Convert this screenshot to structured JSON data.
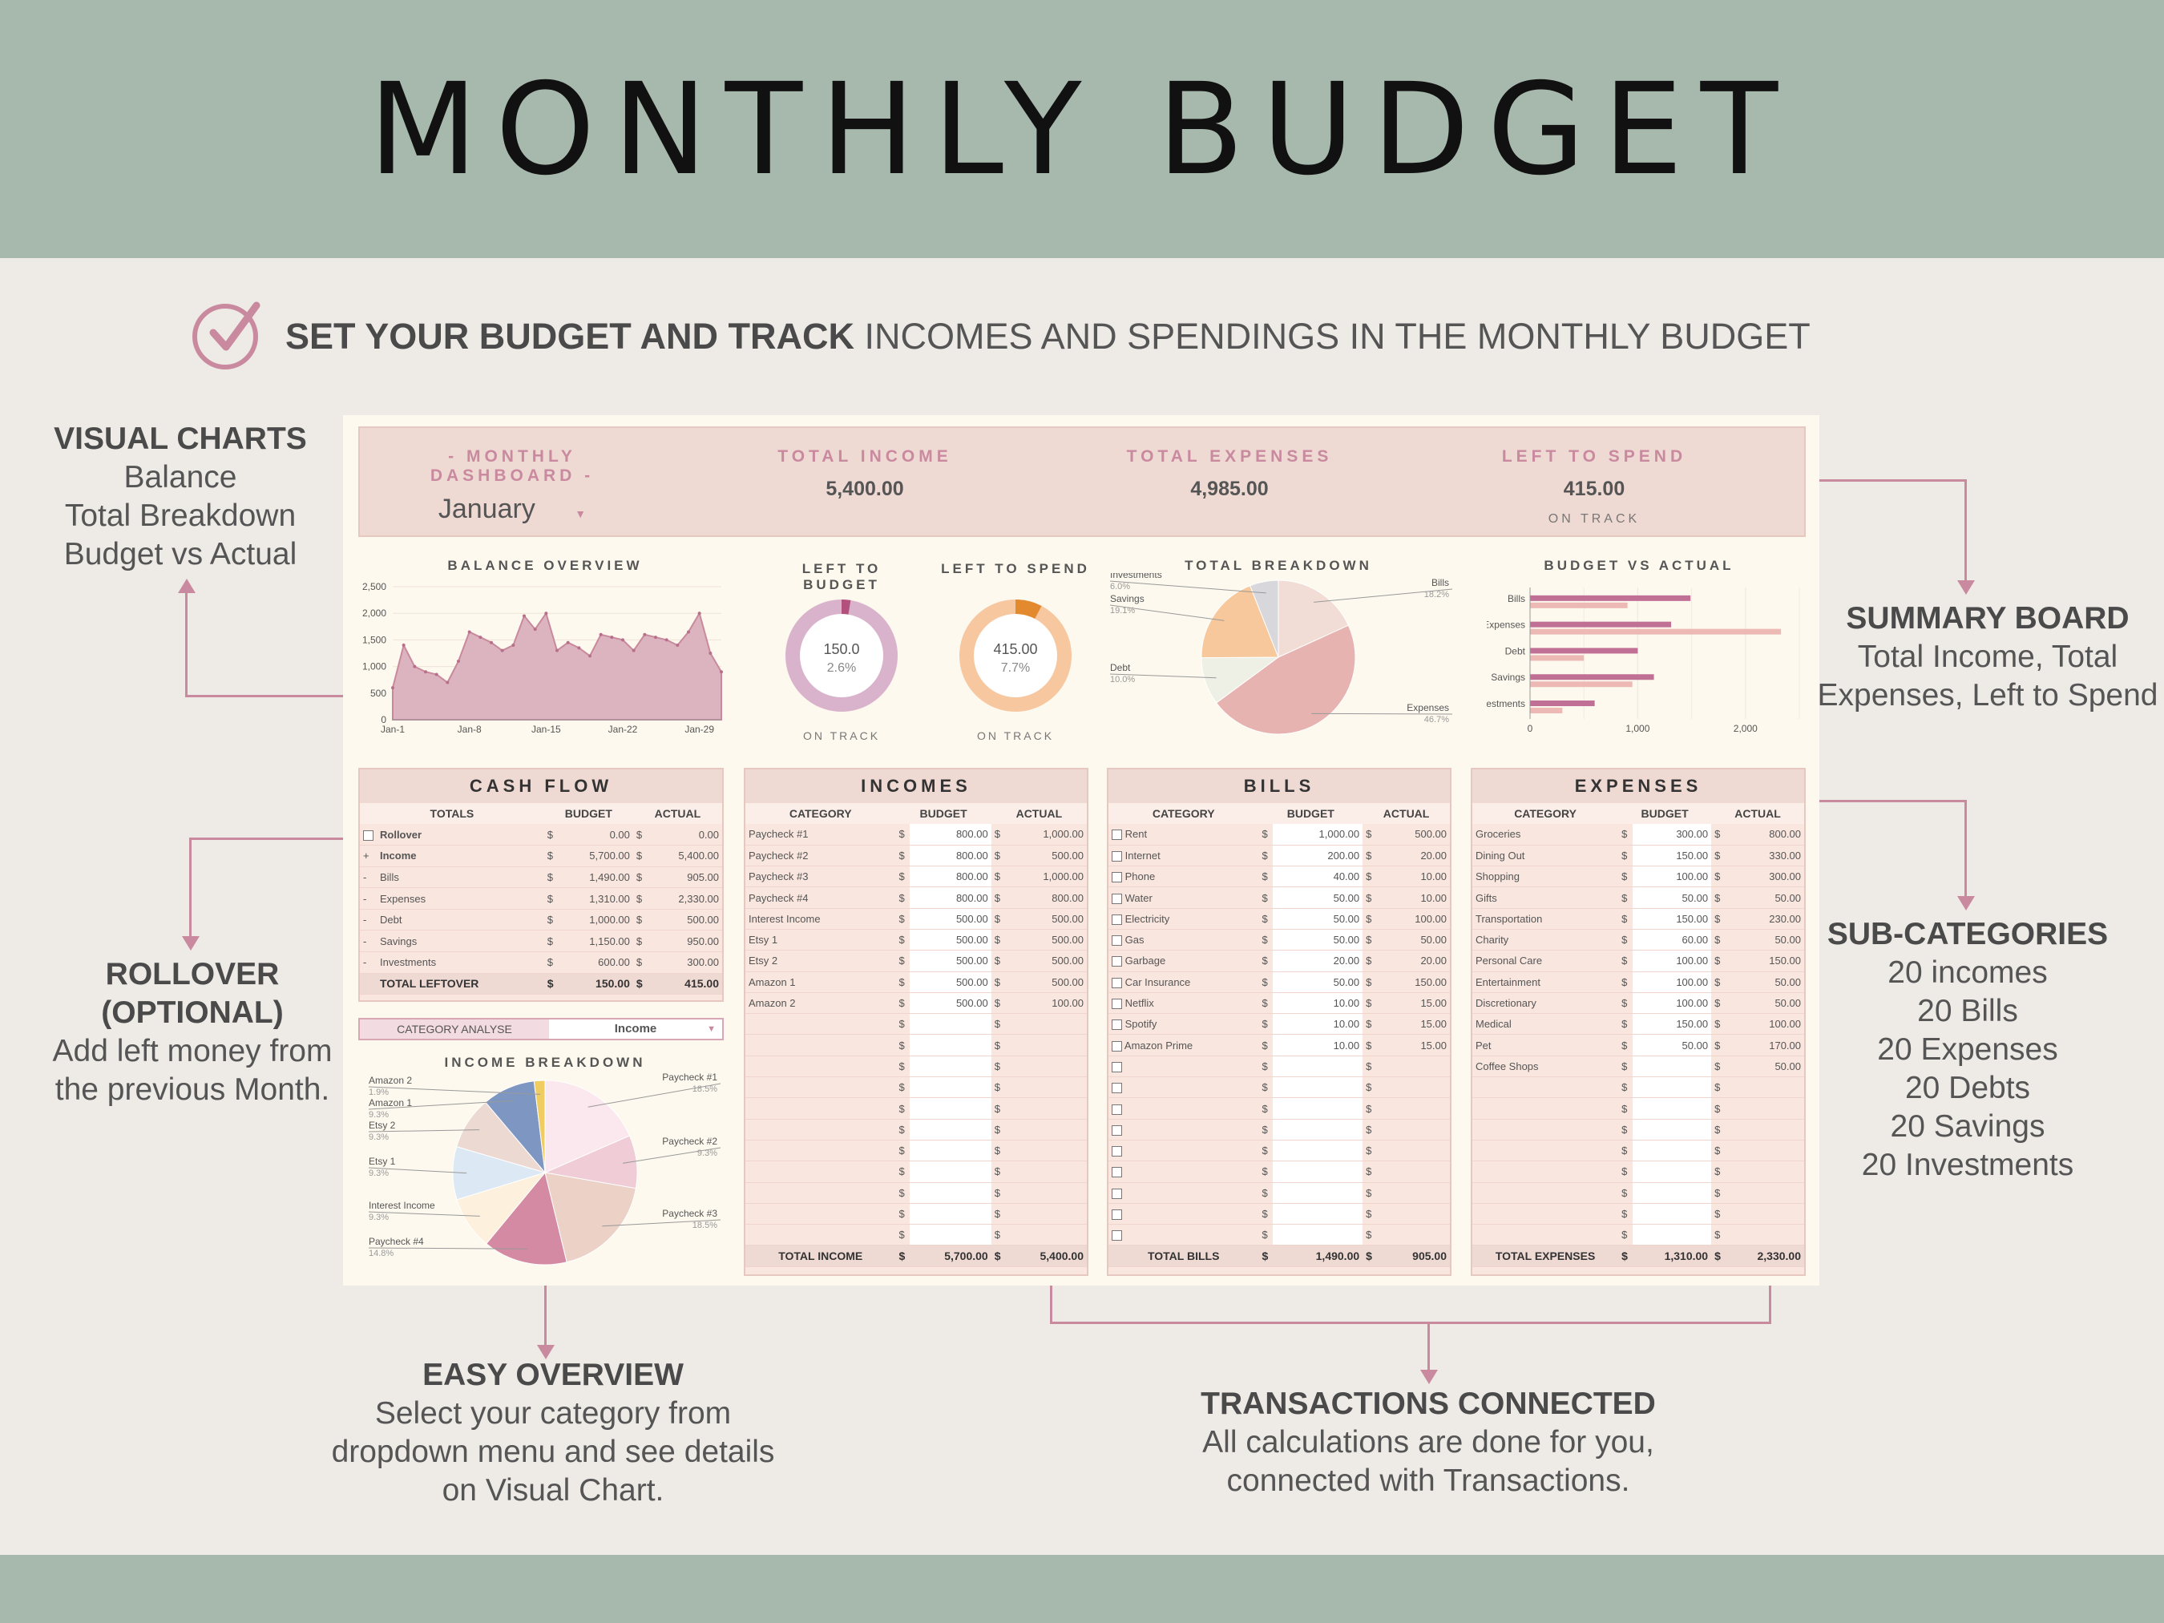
{
  "title": "MONTHLY BUDGET",
  "subtitle": {
    "bold": "SET YOUR BUDGET AND TRACK",
    "rest": "INCOMES AND SPENDINGS IN THE MONTHLY BUDGET"
  },
  "annotations": {
    "visual_charts": {
      "heading": "VISUAL CHARTS",
      "lines": [
        "Balance",
        "Total Breakdown",
        "Budget vs Actual"
      ]
    },
    "rollover": {
      "heading": [
        "ROLLOVER",
        "(OPTIONAL)"
      ],
      "lines": [
        "Add left money from",
        "the previous Month."
      ]
    },
    "summary": {
      "heading": "SUMMARY BOARD",
      "lines": [
        "Total Income, Total",
        "Expenses, Left to Spend"
      ]
    },
    "subcats": {
      "heading": "SUB-CATEGORIES",
      "lines": [
        "20 incomes",
        "20 Bills",
        "20 Expenses",
        "20 Debts",
        "20 Savings",
        "20 Investments"
      ]
    },
    "easy": {
      "heading": "EASY OVERVIEW",
      "lines": [
        "Select your category from",
        "dropdown menu and see details",
        "on Visual Chart."
      ]
    },
    "transactions": {
      "heading": "TRANSACTIONS CONNECTED",
      "lines": [
        "All calculations are done for you,",
        "connected with Transactions."
      ]
    }
  },
  "header": {
    "dashboard_label": "- MONTHLY DASHBOARD -",
    "month": "January",
    "income_label": "TOTAL INCOME",
    "income_value": "5,400.00",
    "expenses_label": "TOTAL EXPENSES",
    "expenses_value": "4,985.00",
    "left_label": "LEFT TO SPEND",
    "left_value": "415.00",
    "left_status": "ON TRACK"
  },
  "chart_data": [
    {
      "type": "area",
      "title": "BALANCE OVERVIEW",
      "x_ticks": [
        "Jan-1",
        "Jan-8",
        "Jan-15",
        "Jan-22",
        "Jan-29"
      ],
      "y_ticks": [
        "0",
        "500",
        "1,000",
        "1,500",
        "2,000",
        "2,500"
      ],
      "ylim": [
        0,
        2500
      ],
      "values": [
        600,
        1400,
        1000,
        900,
        850,
        700,
        1100,
        1650,
        1550,
        1450,
        1300,
        1400,
        1950,
        1700,
        2000,
        1300,
        1450,
        1350,
        1200,
        1600,
        1550,
        1500,
        1300,
        1600,
        1550,
        1500,
        1400,
        1650,
        2000,
        1250,
        900
      ],
      "color": "#dcb4bf"
    },
    {
      "type": "pie",
      "title": "LEFT TO BUDGET",
      "center_value": "150.0",
      "center_pct": "2.6%",
      "status": "ON TRACK",
      "fraction": 0.026,
      "color": "#d9b3cc",
      "accent": "#b2527c"
    },
    {
      "type": "pie",
      "title": "LEFT TO SPEND",
      "center_value": "415.00",
      "center_pct": "7.7%",
      "status": "ON TRACK",
      "fraction": 0.077,
      "color": "#f7c7a0",
      "accent": "#e48a2e"
    },
    {
      "type": "pie",
      "title": "TOTAL BREAKDOWN",
      "slices": [
        {
          "label": "Bills",
          "pct": "18.2%",
          "value": 18.2,
          "color": "#f1ddd6"
        },
        {
          "label": "Expenses",
          "pct": "46.7%",
          "value": 46.7,
          "color": "#e7b3b0"
        },
        {
          "label": "Debt",
          "pct": "10.0%",
          "value": 10.0,
          "color": "#eef0e6"
        },
        {
          "label": "Savings",
          "pct": "19.1%",
          "value": 19.1,
          "color": "#f7c89c"
        },
        {
          "label": "Investments",
          "pct": "6.0%",
          "value": 6.0,
          "color": "#d8d8dc"
        }
      ]
    },
    {
      "type": "bar",
      "title": "BUDGET VS ACTUAL",
      "categories": [
        "Bills",
        "Expenses",
        "Debt",
        "Savings",
        "Investments"
      ],
      "series": [
        {
          "values": [
            1490,
            1310,
            1000,
            1150,
            600
          ],
          "color": "#c06f95"
        },
        {
          "values": [
            905,
            2330,
            500,
            950,
            300
          ],
          "color": "#ecb9b5"
        }
      ],
      "x_ticks": [
        "0",
        "1,000",
        "2,000"
      ],
      "xlim": [
        0,
        2500
      ]
    },
    {
      "type": "pie",
      "title": "INCOME BREAKDOWN",
      "slices": [
        {
          "label": "Paycheck #1",
          "pct": "18.5%",
          "value": 18.5,
          "color": "#fbe8ee"
        },
        {
          "label": "Paycheck #2",
          "pct": "9.3%",
          "value": 9.3,
          "color": "#efccd6"
        },
        {
          "label": "Paycheck #3",
          "pct": "18.5%",
          "value": 18.5,
          "color": "#ebd1c6"
        },
        {
          "label": "Paycheck #4",
          "pct": "14.8%",
          "value": 14.8,
          "color": "#d48aa2"
        },
        {
          "label": "Interest Income",
          "pct": "9.3%",
          "value": 9.3,
          "color": "#fdf0dc"
        },
        {
          "label": "Etsy 1",
          "pct": "9.3%",
          "value": 9.3,
          "color": "#dce8f4"
        },
        {
          "label": "Etsy 2",
          "pct": "9.3%",
          "value": 9.3,
          "color": "#ecd9d2"
        },
        {
          "label": "Amazon 1",
          "pct": "9.3%",
          "value": 9.3,
          "color": "#7e97c2"
        },
        {
          "label": "Amazon 2",
          "pct": "1.9%",
          "value": 1.9,
          "color": "#f0cd63"
        }
      ]
    }
  ],
  "cash_flow": {
    "title": "CASH FLOW",
    "headers": [
      "TOTALS",
      "BUDGET",
      "ACTUAL"
    ],
    "rows": [
      {
        "mark": "☐",
        "name": "Rollover",
        "budget": "0.00",
        "actual": "0.00"
      },
      {
        "mark": "+",
        "name": "Income",
        "budget": "5,700.00",
        "actual": "5,400.00"
      },
      {
        "mark": "-",
        "name": "Bills",
        "budget": "1,490.00",
        "actual": "905.00"
      },
      {
        "mark": "-",
        "name": "Expenses",
        "budget": "1,310.00",
        "actual": "2,330.00"
      },
      {
        "mark": "-",
        "name": "Debt",
        "budget": "1,000.00",
        "actual": "500.00"
      },
      {
        "mark": "-",
        "name": "Savings",
        "budget": "1,150.00",
        "actual": "950.00"
      },
      {
        "mark": "-",
        "name": "Investments",
        "budget": "600.00",
        "actual": "300.00"
      }
    ],
    "total": {
      "name": "TOTAL LEFTOVER",
      "budget": "150.00",
      "actual": "415.00"
    }
  },
  "category_analyse": {
    "label": "CATEGORY ANALYSE",
    "value": "Income"
  },
  "incomes": {
    "title": "INCOMES",
    "headers": [
      "CATEGORY",
      "BUDGET",
      "ACTUAL"
    ],
    "rows": [
      {
        "name": "Paycheck #1",
        "budget": "800.00",
        "actual": "1,000.00"
      },
      {
        "name": "Paycheck #2",
        "budget": "800.00",
        "actual": "500.00"
      },
      {
        "name": "Paycheck #3",
        "budget": "800.00",
        "actual": "1,000.00"
      },
      {
        "name": "Paycheck #4",
        "budget": "800.00",
        "actual": "800.00"
      },
      {
        "name": "Interest Income",
        "budget": "500.00",
        "actual": "500.00"
      },
      {
        "name": "Etsy 1",
        "budget": "500.00",
        "actual": "500.00"
      },
      {
        "name": "Etsy 2",
        "budget": "500.00",
        "actual": "500.00"
      },
      {
        "name": "Amazon 1",
        "budget": "500.00",
        "actual": "500.00"
      },
      {
        "name": "Amazon 2",
        "budget": "500.00",
        "actual": "100.00"
      }
    ],
    "total": {
      "name": "TOTAL INCOME",
      "budget": "5,700.00",
      "actual": "5,400.00"
    }
  },
  "bills": {
    "title": "BILLS",
    "headers": [
      "CATEGORY",
      "BUDGET",
      "ACTUAL"
    ],
    "rows": [
      {
        "name": "Rent",
        "budget": "1,000.00",
        "actual": "500.00"
      },
      {
        "name": "Internet",
        "budget": "200.00",
        "actual": "20.00"
      },
      {
        "name": "Phone",
        "budget": "40.00",
        "actual": "10.00"
      },
      {
        "name": "Water",
        "budget": "50.00",
        "actual": "10.00"
      },
      {
        "name": "Electricity",
        "budget": "50.00",
        "actual": "100.00"
      },
      {
        "name": "Gas",
        "budget": "50.00",
        "actual": "50.00"
      },
      {
        "name": "Garbage",
        "budget": "20.00",
        "actual": "20.00"
      },
      {
        "name": "Car Insurance",
        "budget": "50.00",
        "actual": "150.00"
      },
      {
        "name": "Netflix",
        "budget": "10.00",
        "actual": "15.00"
      },
      {
        "name": "Spotify",
        "budget": "10.00",
        "actual": "15.00"
      },
      {
        "name": "Amazon Prime",
        "budget": "10.00",
        "actual": "15.00"
      }
    ],
    "total": {
      "name": "TOTAL BILLS",
      "budget": "1,490.00",
      "actual": "905.00"
    }
  },
  "expenses": {
    "title": "EXPENSES",
    "headers": [
      "CATEGORY",
      "BUDGET",
      "ACTUAL"
    ],
    "rows": [
      {
        "name": "Groceries",
        "budget": "300.00",
        "actual": "800.00"
      },
      {
        "name": "Dining Out",
        "budget": "150.00",
        "actual": "330.00"
      },
      {
        "name": "Shopping",
        "budget": "100.00",
        "actual": "300.00"
      },
      {
        "name": "Gifts",
        "budget": "50.00",
        "actual": "50.00"
      },
      {
        "name": "Transportation",
        "budget": "150.00",
        "actual": "230.00"
      },
      {
        "name": "Charity",
        "budget": "60.00",
        "actual": "50.00"
      },
      {
        "name": "Personal Care",
        "budget": "100.00",
        "actual": "150.00"
      },
      {
        "name": "Entertainment",
        "budget": "100.00",
        "actual": "50.00"
      },
      {
        "name": "Discretionary",
        "budget": "100.00",
        "actual": "50.00"
      },
      {
        "name": "Medical",
        "budget": "150.00",
        "actual": "100.00"
      },
      {
        "name": "Pet",
        "budget": "50.00",
        "actual": "170.00"
      },
      {
        "name": "Coffee Shops",
        "budget": "",
        "actual": "50.00"
      }
    ],
    "total": {
      "name": "TOTAL EXPENSES",
      "budget": "1,310.00",
      "actual": "2,330.00"
    }
  },
  "currency": "$",
  "colors": {
    "band": "#a7b8ad",
    "accent": "#c98aa0",
    "panel": "#efd9d3",
    "dashboard": "#fdf9ee"
  }
}
